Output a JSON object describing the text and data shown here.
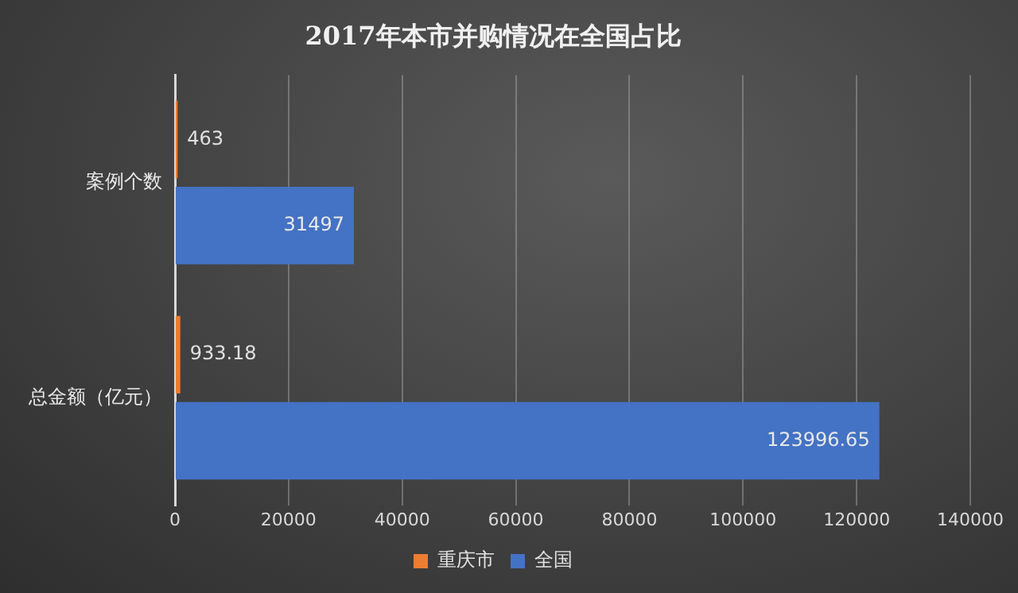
{
  "chart_data": {
    "type": "bar",
    "orientation": "horizontal",
    "title": "2017年本市并购情况在全国占比",
    "categories": [
      "案例个数",
      "总金额（亿元）"
    ],
    "series": [
      {
        "name": "重庆市",
        "color": "#ed7d31",
        "values": [
          463,
          933.18
        ]
      },
      {
        "name": "全国",
        "color": "#4472c4",
        "values": [
          31497,
          123996.65
        ]
      }
    ],
    "xlim": [
      0,
      140000
    ],
    "xticks": [
      0,
      20000,
      40000,
      60000,
      80000,
      100000,
      120000,
      140000
    ],
    "grid": "x",
    "legend": "bottom",
    "data_labels": true
  }
}
